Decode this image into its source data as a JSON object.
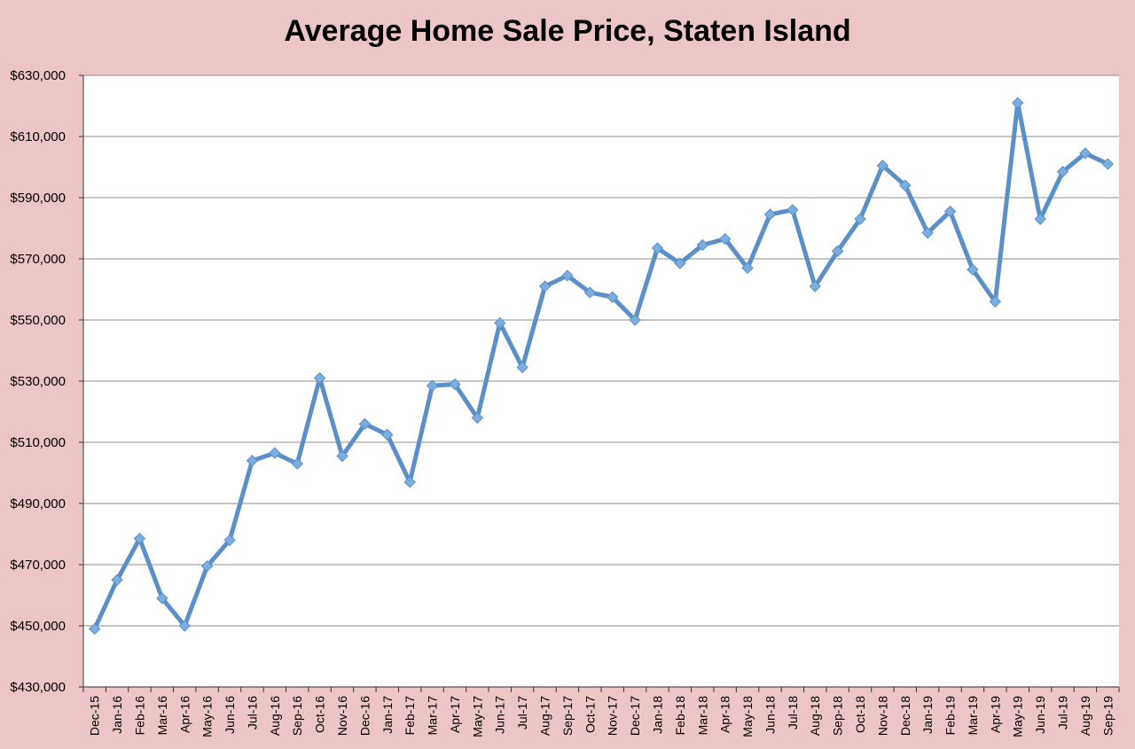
{
  "chart_data": {
    "type": "line",
    "title": "Average Home Sale Price, Staten Island",
    "xlabel": "",
    "ylabel": "",
    "ylim": [
      430000,
      630000
    ],
    "yticks": [
      "$430,000",
      "$450,000",
      "$470,000",
      "$490,000",
      "$510,000",
      "$530,000",
      "$550,000",
      "$570,000",
      "$590,000",
      "$610,000",
      "$630,000"
    ],
    "grid": true,
    "legend": "none",
    "colors": {
      "line": "#5b8fc7",
      "marker": "#7aaee0",
      "plot_bg": "#ffffff",
      "page_bg": "#ecc6c6",
      "grid": "#8c8c8c"
    },
    "categories": [
      "Dec-15",
      "Jan-16",
      "Feb-16",
      "Mar-16",
      "Apr-16",
      "May-16",
      "Jun-16",
      "Jul-16",
      "Aug-16",
      "Sep-16",
      "Oct-16",
      "Nov-16",
      "Dec-16",
      "Jan-17",
      "Feb-17",
      "Mar-17",
      "Apr-17",
      "May-17",
      "Jun-17",
      "Jul-17",
      "Aug-17",
      "Sep-17",
      "Oct-17",
      "Nov-17",
      "Dec-17",
      "Jan-18",
      "Feb-18",
      "Mar-18",
      "Apr-18",
      "May-18",
      "Jun-18",
      "Jul-18",
      "Aug-18",
      "Sep-18",
      "Oct-18",
      "Nov-18",
      "Dec-18",
      "Jan-19",
      "Feb-19",
      "Mar-19",
      "Apr-19",
      "May-19",
      "Jun-19",
      "Jul-19",
      "Aug-19",
      "Sep-19"
    ],
    "series": [
      {
        "values": [
          449000,
          465000,
          478500,
          459000,
          450000,
          469500,
          478000,
          504000,
          506500,
          503000,
          531000,
          505500,
          516000,
          512500,
          497000,
          528500,
          529000,
          518000,
          549000,
          534500,
          561000,
          564500,
          559000,
          557500,
          550000,
          573500,
          568500,
          574500,
          576500,
          567000,
          584500,
          586000,
          561000,
          572500,
          583000,
          600500,
          594000,
          578500,
          585500,
          566500,
          556000,
          621000,
          583000,
          598500,
          604500,
          601000
        ]
      }
    ]
  }
}
